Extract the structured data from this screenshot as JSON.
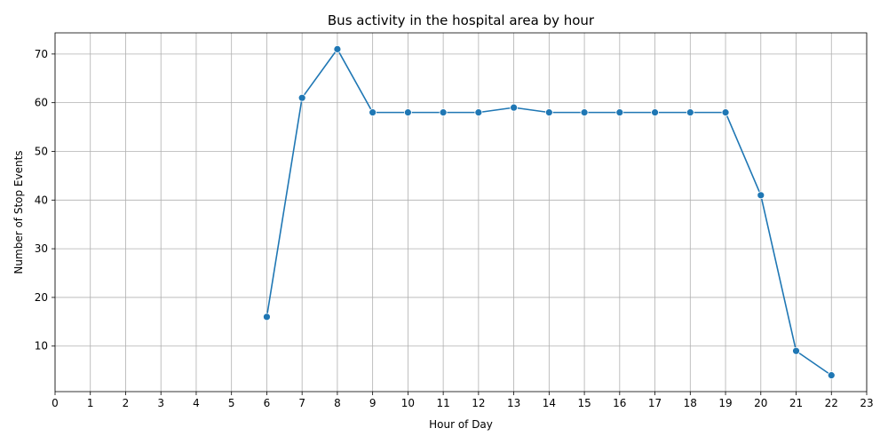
{
  "chart_data": {
    "type": "line",
    "title": "Bus activity in the hospital area by hour",
    "xlabel": "Hour of Day",
    "ylabel": "Number of Stop Events",
    "x_ticks": [
      0,
      1,
      2,
      3,
      4,
      5,
      6,
      7,
      8,
      9,
      10,
      11,
      12,
      13,
      14,
      15,
      16,
      17,
      18,
      19,
      20,
      21,
      22,
      23
    ],
    "y_ticks": [
      10,
      20,
      30,
      40,
      50,
      60,
      70
    ],
    "xlim": [
      0,
      23
    ],
    "ylim": [
      0.65,
      74.35
    ],
    "grid": true,
    "marker": "circle",
    "color": "#1f77b4",
    "x": [
      6,
      7,
      8,
      9,
      10,
      11,
      12,
      13,
      14,
      15,
      16,
      17,
      18,
      19,
      20,
      21,
      22
    ],
    "y": [
      16,
      61,
      71,
      58,
      58,
      58,
      58,
      59,
      58,
      58,
      58,
      58,
      58,
      58,
      41,
      9,
      4
    ]
  }
}
